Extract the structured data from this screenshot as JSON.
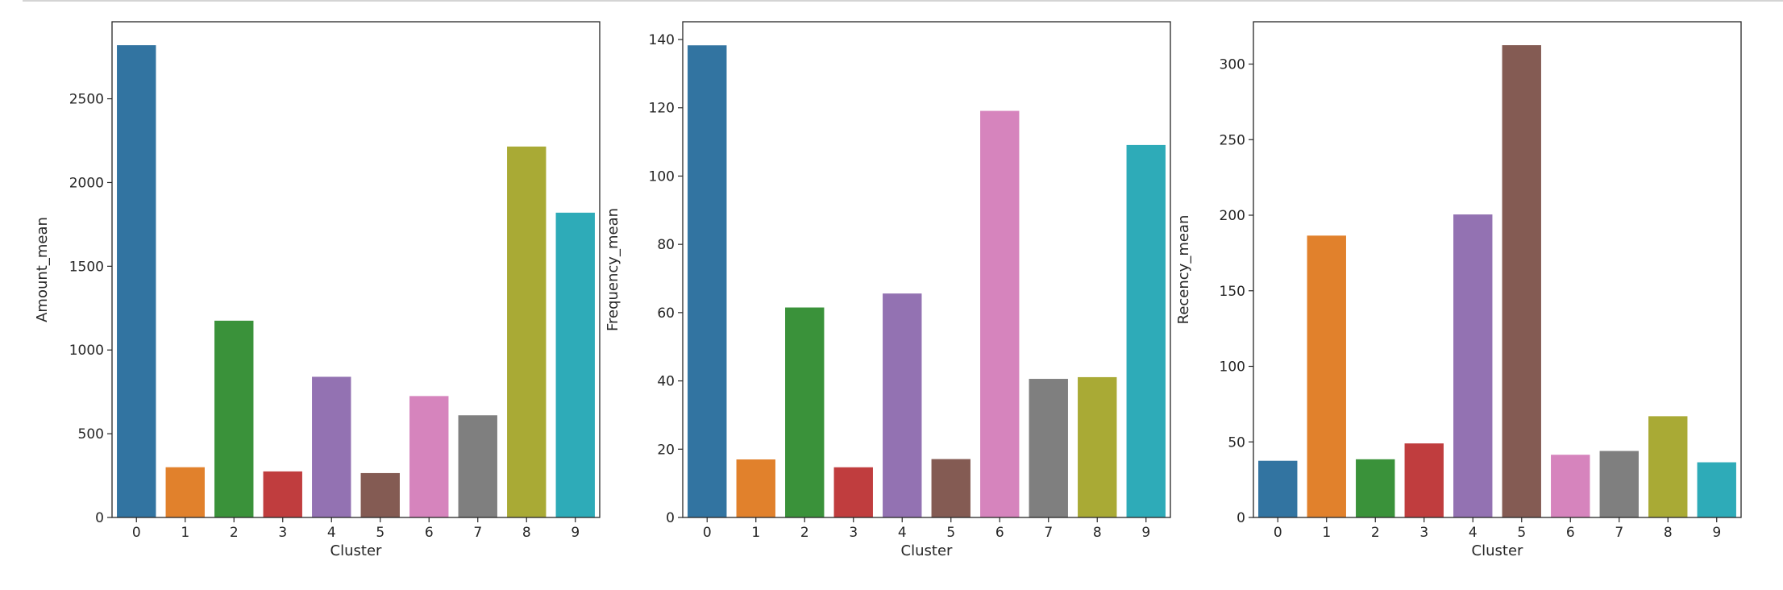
{
  "palette": [
    "#3274a1",
    "#e1812c",
    "#3a923a",
    "#c03d3e",
    "#9372b2",
    "#845b53",
    "#d684bd",
    "#7f7f7f",
    "#a9aa35",
    "#2eabb8"
  ],
  "chart_data": [
    {
      "type": "bar",
      "categories": [
        "0",
        "1",
        "2",
        "3",
        "4",
        "5",
        "6",
        "7",
        "8",
        "9"
      ],
      "values": [
        2820,
        300,
        1175,
        275,
        840,
        265,
        725,
        610,
        2215,
        1820
      ],
      "xlabel": "Cluster",
      "ylabel": "Amount_mean",
      "ylim": [
        0,
        2960
      ],
      "yticks": [
        0,
        500,
        1000,
        1500,
        2000,
        2500
      ],
      "legend": "none",
      "grid": false
    },
    {
      "type": "bar",
      "categories": [
        "0",
        "1",
        "2",
        "3",
        "4",
        "5",
        "6",
        "7",
        "8",
        "9"
      ],
      "values": [
        138.3,
        17.0,
        61.5,
        14.7,
        65.6,
        17.1,
        119.1,
        40.6,
        41.1,
        109.1
      ],
      "xlabel": "Cluster",
      "ylabel": "Frequency_mean",
      "ylim": [
        0,
        145.2
      ],
      "yticks": [
        0,
        20,
        40,
        60,
        80,
        100,
        120,
        140
      ],
      "legend": "none",
      "grid": false
    },
    {
      "type": "bar",
      "categories": [
        "0",
        "1",
        "2",
        "3",
        "4",
        "5",
        "6",
        "7",
        "8",
        "9"
      ],
      "values": [
        37.5,
        186.5,
        38.5,
        49.0,
        200.5,
        312.5,
        41.5,
        44.0,
        67.0,
        36.5
      ],
      "xlabel": "Cluster",
      "ylabel": "Recency_mean",
      "ylim": [
        0,
        328
      ],
      "yticks": [
        0,
        50,
        100,
        150,
        200,
        250,
        300
      ],
      "legend": "none",
      "grid": false
    }
  ]
}
